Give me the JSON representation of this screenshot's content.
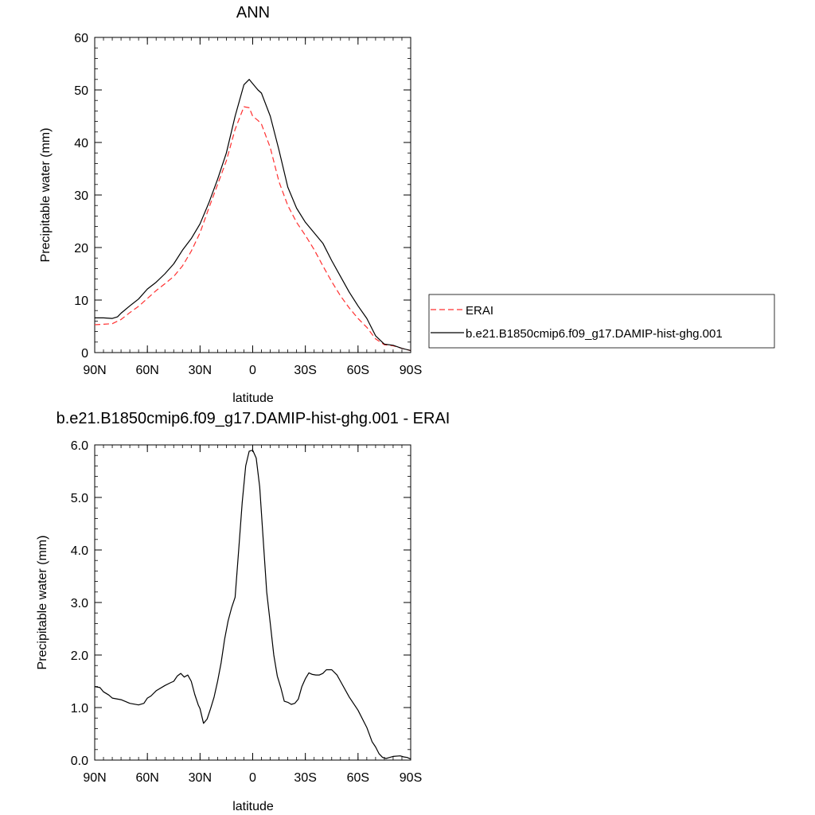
{
  "chart_data": [
    {
      "type": "line",
      "title": "ANN",
      "xlabel": "latitude",
      "ylabel": "Precipitable water (mm)",
      "xlim": [
        90,
        -90
      ],
      "ylim": [
        0,
        60
      ],
      "x_ticks": [
        90,
        60,
        30,
        0,
        -30,
        -60,
        -90
      ],
      "x_tick_labels": [
        "90N",
        "60N",
        "30N",
        "0",
        "30S",
        "60S",
        "90S"
      ],
      "y_ticks": [
        0,
        10,
        20,
        30,
        40,
        50,
        60
      ],
      "y_tick_labels": [
        "0",
        "10",
        "20",
        "30",
        "40",
        "50",
        "60"
      ],
      "grid": false,
      "legend_position": "right",
      "series": [
        {
          "name": "ERAI",
          "color": "#ff3030",
          "dash": true,
          "x": [
            90,
            85,
            80,
            75,
            70,
            65,
            60,
            55,
            50,
            45,
            40,
            35,
            30,
            25,
            20,
            15,
            10,
            5,
            2,
            0,
            -3,
            -5,
            -10,
            -15,
            -20,
            -25,
            -30,
            -35,
            -40,
            -45,
            -50,
            -55,
            -60,
            -65,
            -70,
            -75,
            -80,
            -85,
            -90
          ],
          "values": [
            5.3,
            5.4,
            5.5,
            6.3,
            7.6,
            8.8,
            10.3,
            11.8,
            13.1,
            14.5,
            16.5,
            19.3,
            22.8,
            27.5,
            32.0,
            36.5,
            42.5,
            46.8,
            46.6,
            45.0,
            44.2,
            43.5,
            39.0,
            32.5,
            28.0,
            24.8,
            22.3,
            19.6,
            16.5,
            13.5,
            10.8,
            8.5,
            6.5,
            4.8,
            2.6,
            1.5,
            1.3,
            0.8,
            0.4
          ]
        },
        {
          "name": "b.e21.B1850cmip6.f09_g17.DAMIP-hist-ghg.001",
          "color": "#000000",
          "dash": false,
          "x": [
            90,
            85,
            80,
            77,
            75,
            70,
            65,
            60,
            55,
            50,
            45,
            40,
            35,
            30,
            25,
            20,
            15,
            10,
            5,
            2,
            0,
            -3,
            -5,
            -10,
            -15,
            -20,
            -25,
            -30,
            -35,
            -40,
            -45,
            -50,
            -55,
            -60,
            -65,
            -70,
            -75,
            -80,
            -85,
            -90
          ],
          "values": [
            6.6,
            6.6,
            6.5,
            6.8,
            7.5,
            8.9,
            10.2,
            12.1,
            13.4,
            15.0,
            16.9,
            19.5,
            21.7,
            24.5,
            28.5,
            33.0,
            38.0,
            45.0,
            51.0,
            52.0,
            51.2,
            50.0,
            49.4,
            45.0,
            38.5,
            31.5,
            27.5,
            24.8,
            22.8,
            20.8,
            17.5,
            14.5,
            11.5,
            8.9,
            6.5,
            3.2,
            1.6,
            1.4,
            0.8,
            0.4
          ]
        }
      ]
    },
    {
      "type": "line",
      "title": "b.e21.B1850cmip6.f09_g17.DAMIP-hist-ghg.001 - ERAI",
      "xlabel": "latitude",
      "ylabel": "Precipitable water (mm)",
      "xlim": [
        90,
        -90
      ],
      "ylim": [
        0,
        6
      ],
      "x_ticks": [
        90,
        60,
        30,
        0,
        -30,
        -60,
        -90
      ],
      "x_tick_labels": [
        "90N",
        "60N",
        "30N",
        "0",
        "30S",
        "60S",
        "90S"
      ],
      "y_ticks": [
        0,
        1,
        2,
        3,
        4,
        5,
        6
      ],
      "y_tick_labels": [
        "0.0",
        "1.0",
        "2.0",
        "3.0",
        "4.0",
        "5.0",
        "6.0"
      ],
      "grid": false,
      "series": [
        {
          "color": "#000000",
          "dash": false,
          "x": [
            90,
            87,
            85,
            82,
            80,
            75,
            70,
            65,
            62,
            60,
            58,
            55,
            50,
            47,
            45,
            43,
            41,
            39,
            37,
            35,
            33,
            31,
            30,
            28,
            26,
            24,
            22,
            20,
            18,
            16,
            14,
            12,
            10,
            8,
            6,
            4,
            2,
            0,
            -2,
            -4,
            -6,
            -8,
            -10,
            -12,
            -14,
            -16,
            -18,
            -20,
            -22,
            -24,
            -26,
            -28,
            -30,
            -32,
            -34,
            -36,
            -38,
            -40,
            -42,
            -45,
            -48,
            -50,
            -55,
            -60,
            -65,
            -68,
            -70,
            -72,
            -74,
            -76,
            -78,
            -80,
            -84,
            -86,
            -88,
            -90
          ],
          "values": [
            1.4,
            1.38,
            1.3,
            1.24,
            1.18,
            1.15,
            1.08,
            1.05,
            1.08,
            1.18,
            1.22,
            1.32,
            1.42,
            1.47,
            1.5,
            1.6,
            1.65,
            1.58,
            1.62,
            1.5,
            1.25,
            1.05,
            0.98,
            0.7,
            0.78,
            0.98,
            1.2,
            1.5,
            1.85,
            2.3,
            2.65,
            2.9,
            3.1,
            4.0,
            4.9,
            5.6,
            5.88,
            5.9,
            5.75,
            5.2,
            4.2,
            3.2,
            2.6,
            2.0,
            1.6,
            1.38,
            1.12,
            1.1,
            1.06,
            1.08,
            1.16,
            1.4,
            1.55,
            1.66,
            1.63,
            1.62,
            1.62,
            1.65,
            1.72,
            1.72,
            1.62,
            1.5,
            1.2,
            0.95,
            0.62,
            0.35,
            0.25,
            0.12,
            0.05,
            0.03,
            0.05,
            0.07,
            0.08,
            0.06,
            0.05,
            0.02
          ]
        }
      ]
    }
  ]
}
